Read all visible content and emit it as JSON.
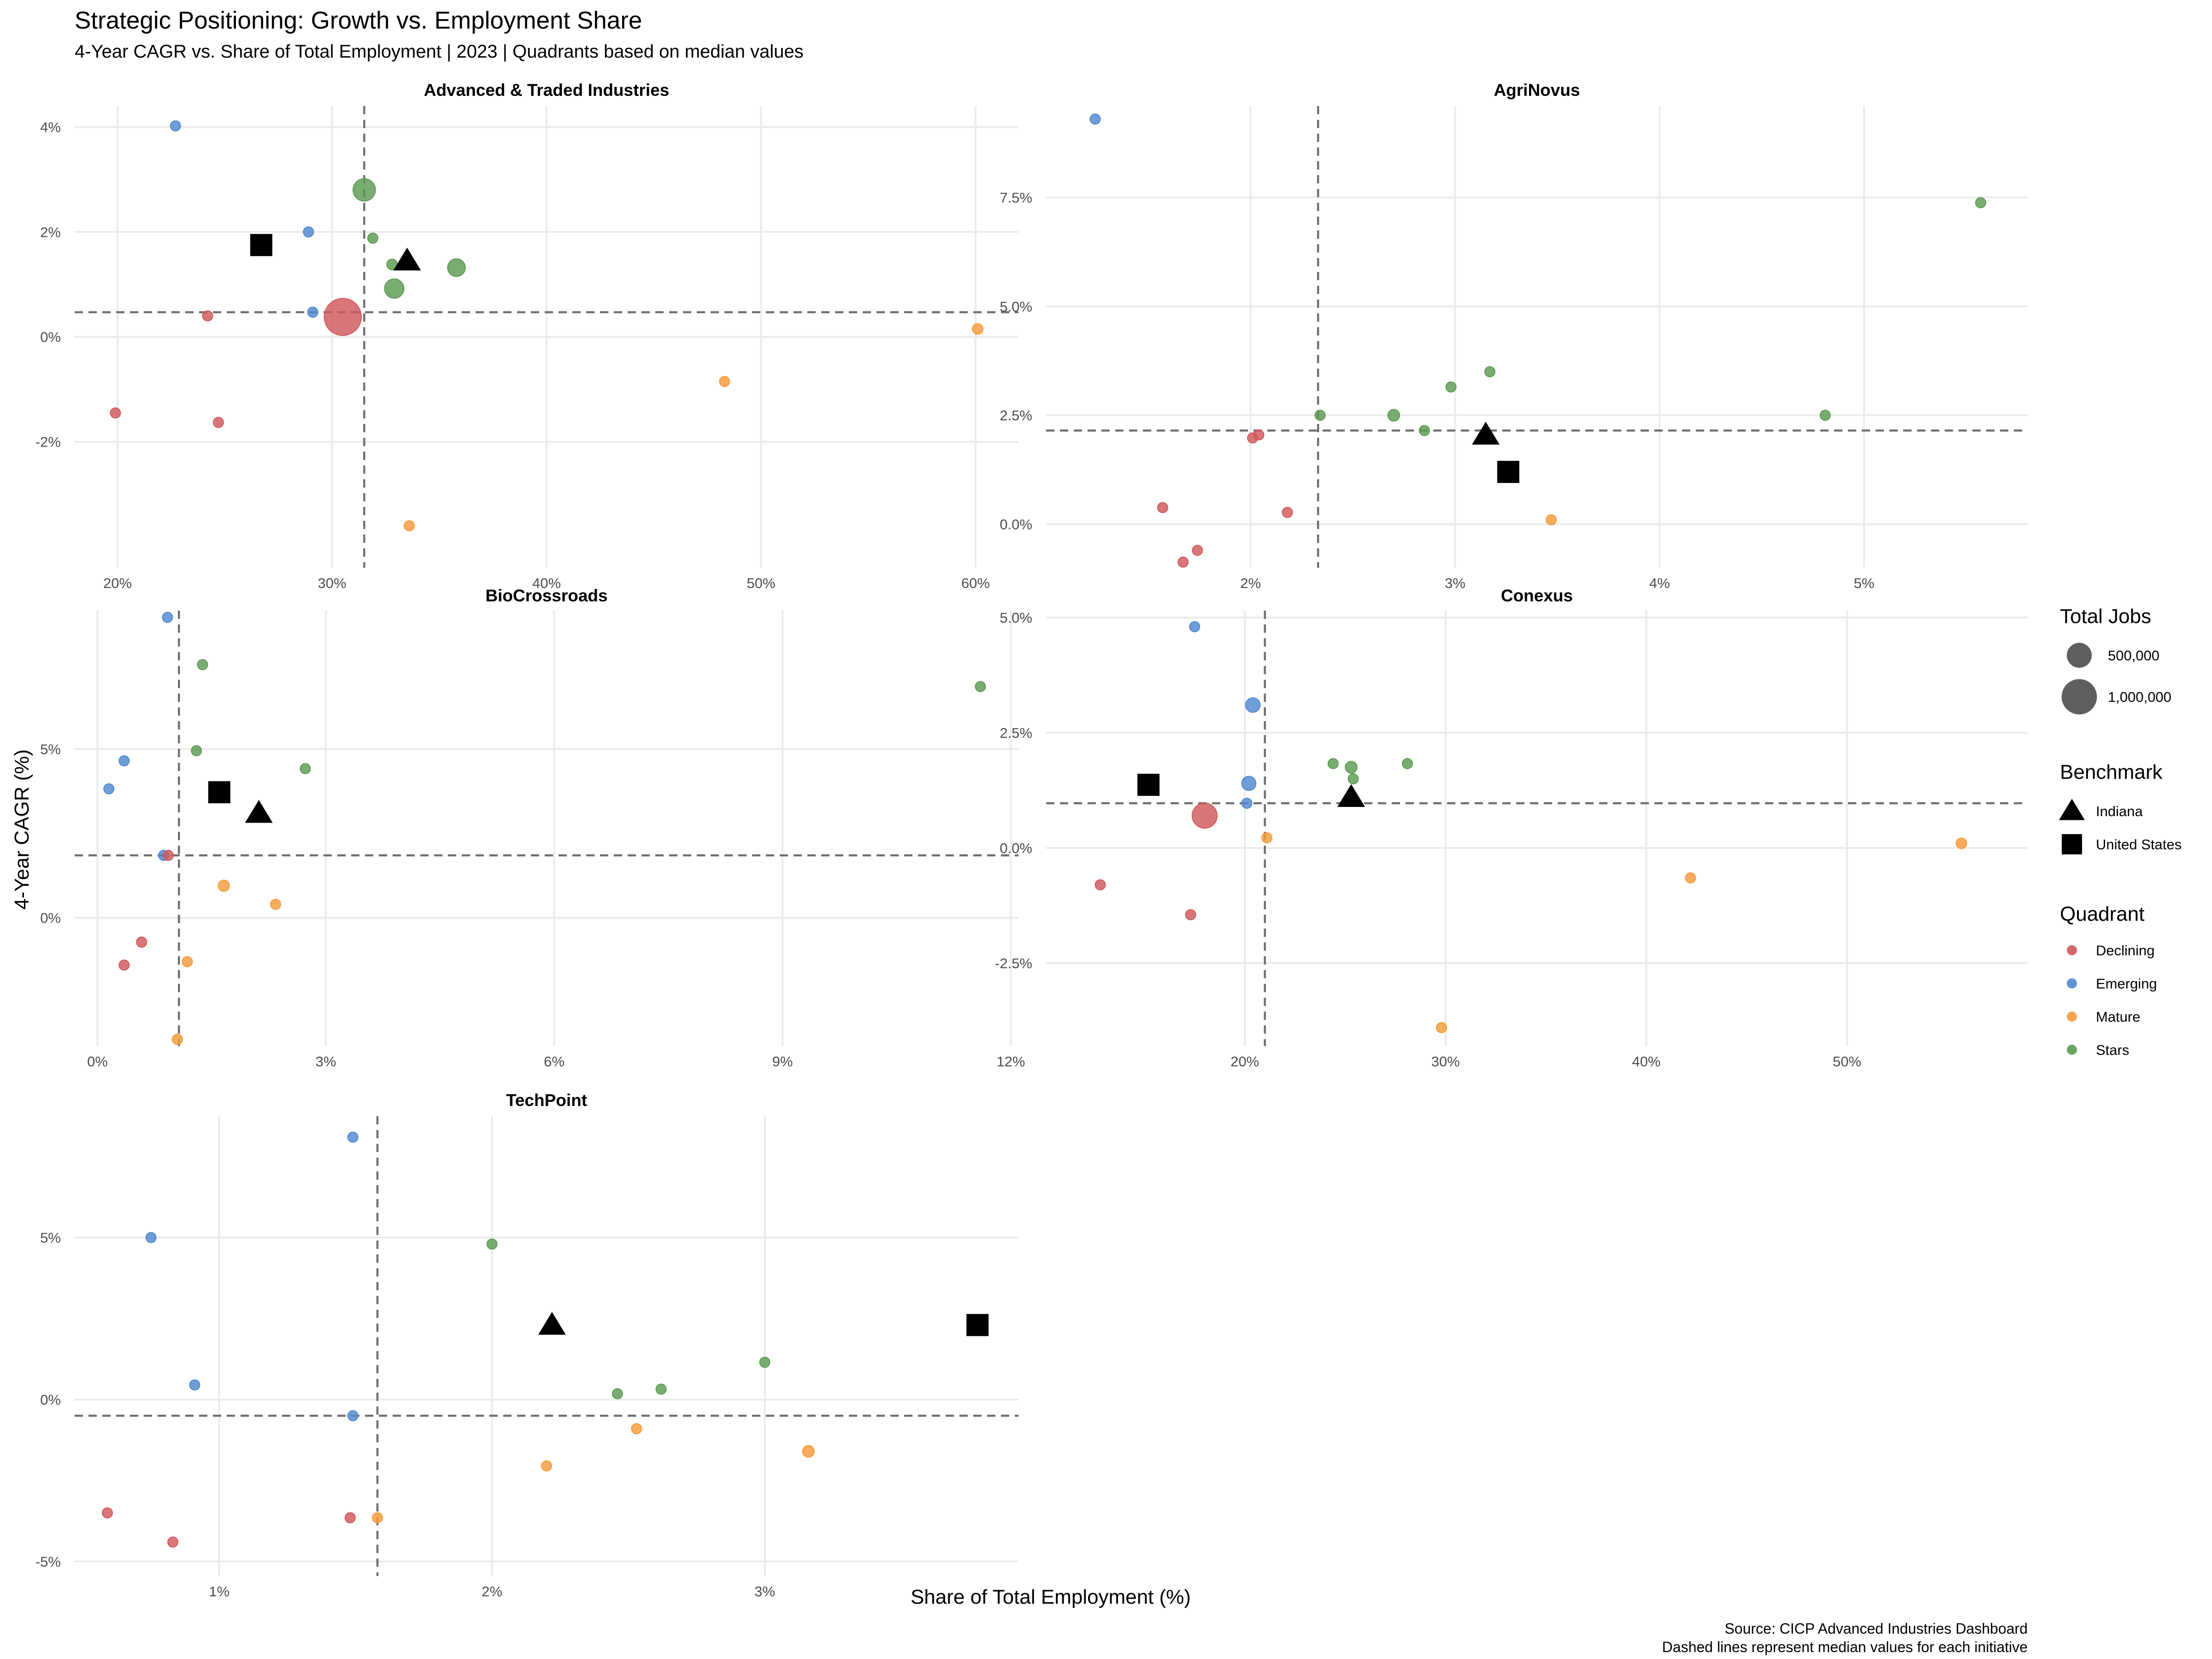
{
  "title": "Strategic Positioning: Growth vs. Employment Share",
  "subtitle": "4-Year CAGR vs. Share of Total Employment | 2023 | Quadrants based on median values",
  "xlabel": "Share of Total Employment (%)",
  "ylabel": "4-Year CAGR (%)",
  "caption": [
    "Source: CICP Advanced Industries Dashboard",
    "Dashed lines represent median values for each initiative"
  ],
  "colors": {
    "Declining": "#d0585c",
    "Emerging": "#4f87cf",
    "Mature": "#f59a3a",
    "Stars": "#5b9a52",
    "benchmark": "#000000"
  },
  "legend": {
    "size_title": "Total Jobs",
    "size_items": [
      {
        "label": "500,000",
        "jobs": 500000
      },
      {
        "label": "1,000,000",
        "jobs": 1000000
      }
    ],
    "benchmark_title": "Benchmark",
    "benchmark_items": [
      {
        "label": "Indiana",
        "shape": "triangle"
      },
      {
        "label": "United States",
        "shape": "square"
      }
    ],
    "quadrant_title": "Quadrant",
    "quadrant_items": [
      "Declining",
      "Emerging",
      "Mature",
      "Stars"
    ]
  },
  "chart_data": [
    {
      "type": "scatter",
      "title": "Advanced & Traded Industries",
      "xlim": [
        18,
        62
      ],
      "ylim": [
        -4.4,
        4.4
      ],
      "xticks": [
        20,
        30,
        40,
        50,
        60
      ],
      "xtick_labels": [
        "20%",
        "30%",
        "40%",
        "50%",
        "60%"
      ],
      "yticks": [
        -2,
        0,
        2,
        4
      ],
      "ytick_labels": [
        "-2%",
        "0%",
        "2%",
        "4%"
      ],
      "median": {
        "x": 31.5,
        "y": 0.47
      },
      "points": [
        {
          "x": 22.7,
          "y": 4.02,
          "jobs": 60000,
          "quadrant": "Emerging"
        },
        {
          "x": 28.9,
          "y": 2.0,
          "jobs": 80000,
          "quadrant": "Emerging"
        },
        {
          "x": 29.1,
          "y": 0.47,
          "jobs": 80000,
          "quadrant": "Emerging"
        },
        {
          "x": 31.5,
          "y": 2.8,
          "jobs": 400000,
          "quadrant": "Stars"
        },
        {
          "x": 31.9,
          "y": 1.88,
          "jobs": 50000,
          "quadrant": "Stars"
        },
        {
          "x": 32.8,
          "y": 1.38,
          "jobs": 90000,
          "quadrant": "Stars"
        },
        {
          "x": 32.9,
          "y": 0.92,
          "jobs": 300000,
          "quadrant": "Stars"
        },
        {
          "x": 35.8,
          "y": 1.32,
          "jobs": 250000,
          "quadrant": "Stars"
        },
        {
          "x": 30.5,
          "y": 0.38,
          "jobs": 1100000,
          "quadrant": "Declining"
        },
        {
          "x": 24.2,
          "y": 0.4,
          "jobs": 50000,
          "quadrant": "Declining"
        },
        {
          "x": 19.9,
          "y": -1.45,
          "jobs": 50000,
          "quadrant": "Declining"
        },
        {
          "x": 24.7,
          "y": -1.63,
          "jobs": 80000,
          "quadrant": "Declining"
        },
        {
          "x": 60.1,
          "y": 0.15,
          "jobs": 90000,
          "quadrant": "Mature"
        },
        {
          "x": 48.3,
          "y": -0.85,
          "jobs": 60000,
          "quadrant": "Mature"
        },
        {
          "x": 33.6,
          "y": -3.6,
          "jobs": 40000,
          "quadrant": "Mature"
        }
      ],
      "benchmarks": [
        {
          "name": "Indiana",
          "x": 33.5,
          "y": 1.45
        },
        {
          "name": "United States",
          "x": 26.7,
          "y": 1.75
        }
      ]
    },
    {
      "type": "scatter",
      "title": "AgriNovus",
      "xlim": [
        1.0,
        5.8
      ],
      "ylim": [
        -1.0,
        9.6
      ],
      "xticks": [
        2,
        3,
        4,
        5
      ],
      "xtick_labels": [
        "2%",
        "3%",
        "4%",
        "5%"
      ],
      "yticks": [
        0,
        2.5,
        5,
        7.5
      ],
      "ytick_labels": [
        "0.0%",
        "2.5%",
        "5.0%",
        "7.5%"
      ],
      "median": {
        "x": 2.33,
        "y": 2.15
      },
      "points": [
        {
          "x": 1.24,
          "y": 9.3,
          "jobs": 20000,
          "quadrant": "Emerging"
        },
        {
          "x": 5.57,
          "y": 7.38,
          "jobs": 30000,
          "quadrant": "Stars"
        },
        {
          "x": 3.17,
          "y": 3.5,
          "jobs": 30000,
          "quadrant": "Stars"
        },
        {
          "x": 2.98,
          "y": 3.15,
          "jobs": 50000,
          "quadrant": "Stars"
        },
        {
          "x": 2.34,
          "y": 2.5,
          "jobs": 60000,
          "quadrant": "Stars"
        },
        {
          "x": 2.7,
          "y": 2.5,
          "jobs": 110000,
          "quadrant": "Stars"
        },
        {
          "x": 2.85,
          "y": 2.15,
          "jobs": 60000,
          "quadrant": "Stars"
        },
        {
          "x": 4.81,
          "y": 2.5,
          "jobs": 30000,
          "quadrant": "Stars"
        },
        {
          "x": 2.01,
          "y": 1.98,
          "jobs": 30000,
          "quadrant": "Declining"
        },
        {
          "x": 2.04,
          "y": 2.05,
          "jobs": 30000,
          "quadrant": "Declining"
        },
        {
          "x": 1.57,
          "y": 0.38,
          "jobs": 30000,
          "quadrant": "Declining"
        },
        {
          "x": 2.18,
          "y": 0.27,
          "jobs": 40000,
          "quadrant": "Declining"
        },
        {
          "x": 1.74,
          "y": -0.6,
          "jobs": 30000,
          "quadrant": "Declining"
        },
        {
          "x": 1.67,
          "y": -0.87,
          "jobs": 30000,
          "quadrant": "Declining"
        },
        {
          "x": 3.47,
          "y": 0.1,
          "jobs": 40000,
          "quadrant": "Mature"
        }
      ],
      "benchmarks": [
        {
          "name": "Indiana",
          "x": 3.15,
          "y": 2.05
        },
        {
          "name": "United States",
          "x": 3.26,
          "y": 1.2
        }
      ]
    },
    {
      "type": "scatter",
      "title": "BioCrossroads",
      "xlim": [
        -0.3,
        12.1
      ],
      "ylim": [
        -3.8,
        9.1
      ],
      "xticks": [
        0,
        3,
        6,
        9,
        12
      ],
      "xtick_labels": [
        "0%",
        "3%",
        "6%",
        "9%",
        "12%"
      ],
      "yticks": [
        0,
        5
      ],
      "ytick_labels": [
        "0%",
        "5%"
      ],
      "median": {
        "x": 1.07,
        "y": 1.85
      },
      "points": [
        {
          "x": 0.92,
          "y": 8.9,
          "jobs": 20000,
          "quadrant": "Emerging"
        },
        {
          "x": 0.35,
          "y": 4.65,
          "jobs": 20000,
          "quadrant": "Emerging"
        },
        {
          "x": 0.15,
          "y": 3.82,
          "jobs": 20000,
          "quadrant": "Emerging"
        },
        {
          "x": 0.87,
          "y": 1.85,
          "jobs": 40000,
          "quadrant": "Emerging"
        },
        {
          "x": 1.38,
          "y": 7.5,
          "jobs": 30000,
          "quadrant": "Stars"
        },
        {
          "x": 11.6,
          "y": 6.85,
          "jobs": 40000,
          "quadrant": "Stars"
        },
        {
          "x": 1.3,
          "y": 4.95,
          "jobs": 50000,
          "quadrant": "Stars"
        },
        {
          "x": 2.73,
          "y": 4.42,
          "jobs": 60000,
          "quadrant": "Stars"
        },
        {
          "x": 0.93,
          "y": 1.85,
          "jobs": 30000,
          "quadrant": "Declining"
        },
        {
          "x": 0.58,
          "y": -0.72,
          "jobs": 30000,
          "quadrant": "Declining"
        },
        {
          "x": 0.35,
          "y": -1.4,
          "jobs": 30000,
          "quadrant": "Declining"
        },
        {
          "x": 1.66,
          "y": 0.95,
          "jobs": 100000,
          "quadrant": "Mature"
        },
        {
          "x": 2.34,
          "y": 0.4,
          "jobs": 40000,
          "quadrant": "Mature"
        },
        {
          "x": 1.18,
          "y": -1.3,
          "jobs": 30000,
          "quadrant": "Mature"
        },
        {
          "x": 1.05,
          "y": -3.6,
          "jobs": 30000,
          "quadrant": "Mature"
        }
      ],
      "benchmarks": [
        {
          "name": "Indiana",
          "x": 2.12,
          "y": 3.1
        },
        {
          "name": "United States",
          "x": 1.6,
          "y": 3.72
        }
      ]
    },
    {
      "type": "scatter",
      "title": "Conexus",
      "xlim": [
        10.1,
        59
      ],
      "ylim": [
        -4.3,
        5.15
      ],
      "xticks": [
        20,
        30,
        40,
        50
      ],
      "xtick_labels": [
        "20%",
        "30%",
        "40%",
        "50%"
      ],
      "yticks": [
        -2.5,
        0,
        2.5,
        5
      ],
      "ytick_labels": [
        "-2.5%",
        "0.0%",
        "2.5%",
        "5.0%"
      ],
      "median": {
        "x": 21.0,
        "y": 0.97
      },
      "points": [
        {
          "x": 17.5,
          "y": 4.8,
          "jobs": 40000,
          "quadrant": "Emerging"
        },
        {
          "x": 20.4,
          "y": 3.1,
          "jobs": 170000,
          "quadrant": "Emerging"
        },
        {
          "x": 20.2,
          "y": 1.4,
          "jobs": 160000,
          "quadrant": "Emerging"
        },
        {
          "x": 20.1,
          "y": 0.97,
          "jobs": 40000,
          "quadrant": "Emerging"
        },
        {
          "x": 24.4,
          "y": 1.83,
          "jobs": 60000,
          "quadrant": "Stars"
        },
        {
          "x": 25.3,
          "y": 1.75,
          "jobs": 110000,
          "quadrant": "Stars"
        },
        {
          "x": 25.4,
          "y": 1.5,
          "jobs": 60000,
          "quadrant": "Stars"
        },
        {
          "x": 28.1,
          "y": 1.83,
          "jobs": 40000,
          "quadrant": "Stars"
        },
        {
          "x": 18.0,
          "y": 0.7,
          "jobs": 500000,
          "quadrant": "Declining"
        },
        {
          "x": 12.8,
          "y": -0.8,
          "jobs": 40000,
          "quadrant": "Declining"
        },
        {
          "x": 17.3,
          "y": -1.45,
          "jobs": 60000,
          "quadrant": "Declining"
        },
        {
          "x": 21.1,
          "y": 0.22,
          "jobs": 60000,
          "quadrant": "Mature"
        },
        {
          "x": 55.7,
          "y": 0.1,
          "jobs": 90000,
          "quadrant": "Mature"
        },
        {
          "x": 42.2,
          "y": -0.65,
          "jobs": 60000,
          "quadrant": "Mature"
        },
        {
          "x": 29.8,
          "y": -3.9,
          "jobs": 40000,
          "quadrant": "Mature"
        }
      ],
      "benchmarks": [
        {
          "name": "Indiana",
          "x": 25.3,
          "y": 1.1
        },
        {
          "name": "United States",
          "x": 15.2,
          "y": 1.37
        }
      ]
    },
    {
      "type": "scatter",
      "title": "TechPoint",
      "xlim": [
        0.47,
        3.93
      ],
      "ylim": [
        -5.45,
        8.75
      ],
      "xticks": [
        1,
        2,
        3
      ],
      "xtick_labels": [
        "1%",
        "2%",
        "3%"
      ],
      "yticks": [
        -5,
        0,
        5
      ],
      "ytick_labels": [
        "-5%",
        "0%",
        "5%"
      ],
      "median": {
        "x": 1.58,
        "y": -0.5
      },
      "points": [
        {
          "x": 1.49,
          "y": 8.1,
          "jobs": 30000,
          "quadrant": "Emerging"
        },
        {
          "x": 0.75,
          "y": 5.0,
          "jobs": 30000,
          "quadrant": "Emerging"
        },
        {
          "x": 0.91,
          "y": 0.45,
          "jobs": 30000,
          "quadrant": "Emerging"
        },
        {
          "x": 1.49,
          "y": -0.5,
          "jobs": 30000,
          "quadrant": "Emerging"
        },
        {
          "x": 2.0,
          "y": 4.8,
          "jobs": 30000,
          "quadrant": "Stars"
        },
        {
          "x": 3.0,
          "y": 1.15,
          "jobs": 60000,
          "quadrant": "Stars"
        },
        {
          "x": 2.62,
          "y": 0.32,
          "jobs": 50000,
          "quadrant": "Stars"
        },
        {
          "x": 2.46,
          "y": 0.18,
          "jobs": 50000,
          "quadrant": "Stars"
        },
        {
          "x": 0.59,
          "y": -3.5,
          "jobs": 30000,
          "quadrant": "Declining"
        },
        {
          "x": 0.83,
          "y": -4.4,
          "jobs": 30000,
          "quadrant": "Declining"
        },
        {
          "x": 1.48,
          "y": -3.65,
          "jobs": 30000,
          "quadrant": "Declining"
        },
        {
          "x": 2.53,
          "y": -0.9,
          "jobs": 40000,
          "quadrant": "Mature"
        },
        {
          "x": 3.16,
          "y": -1.6,
          "jobs": 110000,
          "quadrant": "Mature"
        },
        {
          "x": 2.2,
          "y": -2.05,
          "jobs": 30000,
          "quadrant": "Mature"
        },
        {
          "x": 1.58,
          "y": -3.65,
          "jobs": 30000,
          "quadrant": "Mature"
        }
      ],
      "benchmarks": [
        {
          "name": "Indiana",
          "x": 2.22,
          "y": 2.3
        },
        {
          "name": "United States",
          "x": 3.78,
          "y": 2.3
        }
      ]
    }
  ]
}
